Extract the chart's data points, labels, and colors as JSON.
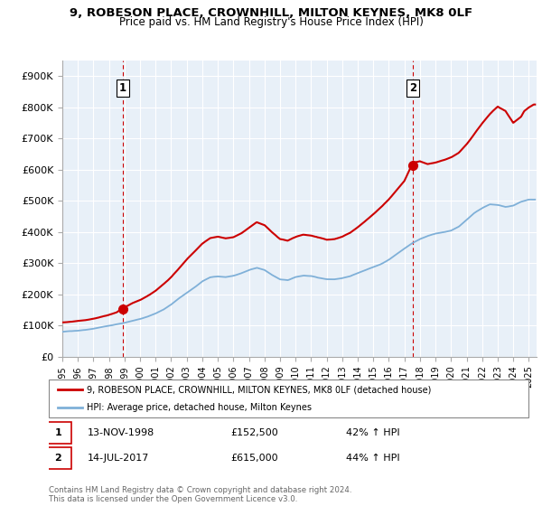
{
  "title": "9, ROBESON PLACE, CROWNHILL, MILTON KEYNES, MK8 0LF",
  "subtitle": "Price paid vs. HM Land Registry's House Price Index (HPI)",
  "hpi_label": "HPI: Average price, detached house, Milton Keynes",
  "property_label": "9, ROBESON PLACE, CROWNHILL, MILTON KEYNES, MK8 0LF (detached house)",
  "annotation1_date": "13-NOV-1998",
  "annotation1_price": "£152,500",
  "annotation1_hpi": "42% ↑ HPI",
  "annotation2_date": "14-JUL-2017",
  "annotation2_price": "£615,000",
  "annotation2_hpi": "44% ↑ HPI",
  "red_color": "#cc0000",
  "blue_color": "#7fb0d8",
  "footer": "Contains HM Land Registry data © Crown copyright and database right 2024.\nThis data is licensed under the Open Government Licence v3.0.",
  "bg_color": "#e8f0f8",
  "ylim": [
    0,
    950000
  ],
  "yticks": [
    0,
    100000,
    200000,
    300000,
    400000,
    500000,
    600000,
    700000,
    800000,
    900000
  ],
  "ytick_labels": [
    "£0",
    "£100K",
    "£200K",
    "£300K",
    "£400K",
    "£500K",
    "£600K",
    "£700K",
    "£800K",
    "£900K"
  ],
  "sale1_x": 1998.875,
  "sale1_y": 152500,
  "sale2_x": 2017.542,
  "sale2_y": 615000,
  "xlim_left": 1995,
  "xlim_right": 2025.5
}
